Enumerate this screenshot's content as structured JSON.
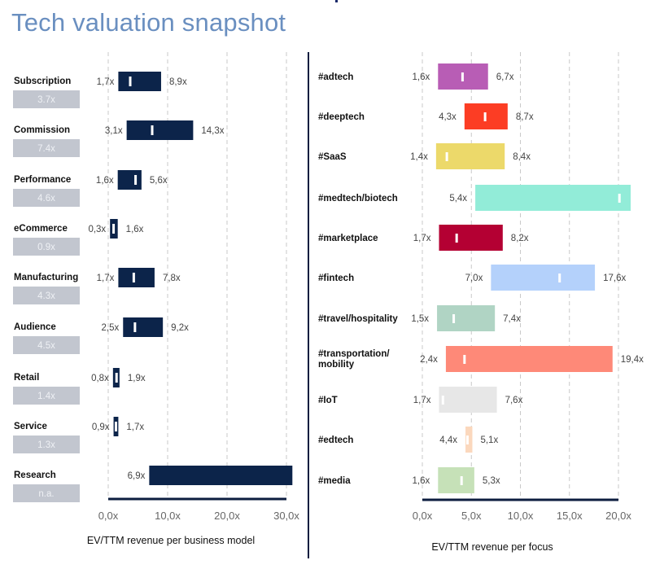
{
  "page": {
    "title": "Tech valuation snapshot"
  },
  "chart_data": [
    {
      "type": "bar",
      "subtype": "range",
      "title": "EV/TTM revenue per business model",
      "xlabel": "EV/TTM revenue per business model",
      "xlim": [
        0,
        30
      ],
      "xticks": [
        "0,0x",
        "10,0x",
        "20,0x",
        "30,0x"
      ],
      "xtick_values": [
        0,
        10,
        20,
        30
      ],
      "grid": true,
      "bar_color": "#0c244a",
      "badge_color": "#c2c6cf",
      "categories": [
        "Subscription",
        "Commission",
        "Performance",
        "eCommerce",
        "Manufacturing",
        "Audience",
        "Retail",
        "Service",
        "Research"
      ],
      "series": [
        {
          "name": "low",
          "values": [
            1.7,
            3.1,
            1.6,
            0.3,
            1.7,
            2.5,
            0.8,
            0.9,
            6.9
          ]
        },
        {
          "name": "high",
          "values": [
            8.9,
            14.3,
            5.6,
            1.6,
            7.8,
            9.2,
            1.9,
            1.7,
            31.0
          ]
        },
        {
          "name": "median",
          "values": [
            3.7,
            7.4,
            4.6,
            0.9,
            4.3,
            4.5,
            1.4,
            1.3,
            30.0
          ]
        }
      ],
      "low_labels": [
        "1,7x",
        "3,1x",
        "1,6x",
        "0,3x",
        "1,7x",
        "2,5x",
        "0,8x",
        "0,9x",
        "6,9x"
      ],
      "high_labels": [
        "8,9x",
        "14,3x",
        "5,6x",
        "1,6x",
        "7,8x",
        "9,2x",
        "1,9x",
        "1,7x",
        ""
      ],
      "badges": [
        "3.7x",
        "7.4x",
        "4.6x",
        "0.9x",
        "4.3x",
        "4.5x",
        "1.4x",
        "1.3x",
        "n.a."
      ]
    },
    {
      "type": "bar",
      "subtype": "range",
      "title": "EV/TTM revenue per focus",
      "xlabel": "EV/TTM revenue per focus",
      "xlim": [
        0,
        20
      ],
      "xticks": [
        "0,0x",
        "5,0x",
        "10,0x",
        "15,0x",
        "20,0x"
      ],
      "xtick_values": [
        0,
        5,
        10,
        15,
        20
      ],
      "grid": true,
      "categories": [
        "#adtech",
        "#deeptech",
        "#SaaS",
        "#medtech/biotech",
        "#marketplace",
        "#fintech",
        "#travel/hospitality",
        "#transportation/\nmobility",
        "#IoT",
        "#edtech",
        "#media"
      ],
      "colors": [
        "#b85db5",
        "#fc3d24",
        "#ecd96a",
        "#92ecd8",
        "#b40033",
        "#b4d1fb",
        "#b0d4c4",
        "#fe8978",
        "#e7e7e7",
        "#fbd8bd",
        "#c6e1b8"
      ],
      "series": [
        {
          "name": "low",
          "values": [
            1.6,
            4.3,
            1.4,
            5.4,
            1.7,
            7.0,
            1.5,
            2.4,
            1.7,
            4.4,
            1.6
          ]
        },
        {
          "name": "high",
          "values": [
            6.7,
            8.7,
            8.4,
            21.3,
            8.2,
            17.6,
            7.4,
            19.4,
            7.6,
            5.1,
            5.3
          ]
        },
        {
          "name": "median",
          "values": [
            4.1,
            6.4,
            2.5,
            20.1,
            3.5,
            14.0,
            3.2,
            4.3,
            2.1,
            4.6,
            4.0
          ]
        }
      ],
      "low_labels": [
        "1,6x",
        "4,3x",
        "1,4x",
        "5,4x",
        "1,7x",
        "7,0x",
        "1,5x",
        "2,4x",
        "1,7x",
        "4,4x",
        "1,6x"
      ],
      "high_labels": [
        "6,7x",
        "8,7x",
        "8,4x",
        "",
        "8,2x",
        "17,6x",
        "7,4x",
        "19,4x",
        "7,6x",
        "5,1x",
        "5,3x"
      ]
    }
  ]
}
